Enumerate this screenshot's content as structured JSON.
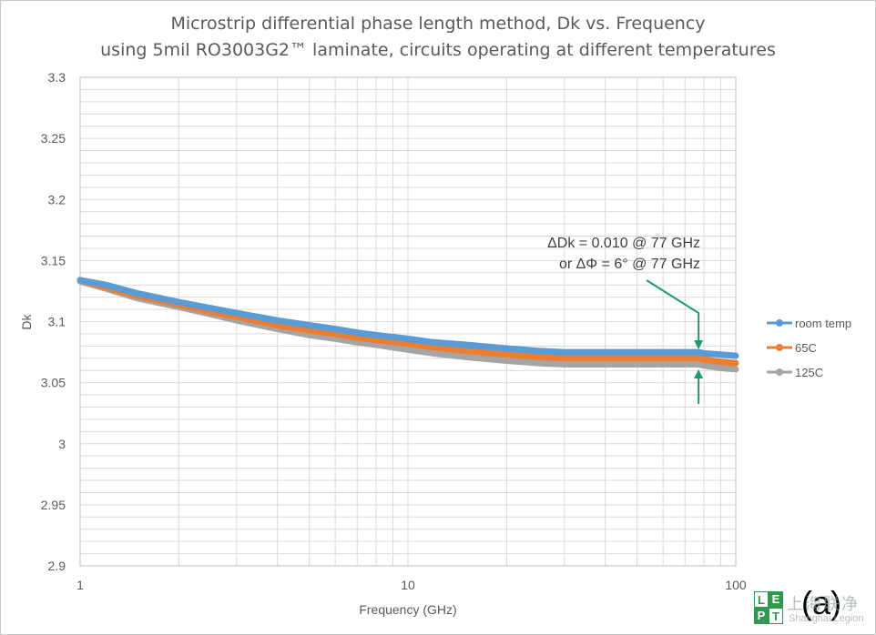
{
  "chart_data": {
    "type": "line",
    "title": [
      "Microstrip differential  phase length method, Dk vs. Frequency",
      "using 5mil RO3003G2™ laminate, circuits operating at different  temperatures"
    ],
    "xlabel": "Frequency (GHz)",
    "ylabel": "Dk",
    "x_scale": "log",
    "xlim": [
      1,
      100
    ],
    "ylim": [
      2.9,
      3.3
    ],
    "x_ticks": [
      "1",
      "10",
      "100"
    ],
    "y_ticks": [
      "3.3",
      "3.25",
      "3.2",
      "3.15",
      "3.1",
      "3.05",
      "3",
      "2.95",
      "2.9"
    ],
    "grid": true,
    "legend": "right",
    "x": [
      1,
      1.2,
      1.5,
      2,
      2.5,
      3,
      4,
      5,
      6,
      7,
      8,
      10,
      12,
      15,
      20,
      25,
      30,
      40,
      50,
      60,
      70,
      77,
      80,
      90,
      100
    ],
    "series": [
      {
        "name": "room temp",
        "color": "#5b9bd5",
        "values": [
          3.134,
          3.13,
          3.123,
          3.116,
          3.111,
          3.107,
          3.101,
          3.097,
          3.094,
          3.091,
          3.089,
          3.086,
          3.083,
          3.081,
          3.078,
          3.076,
          3.075,
          3.075,
          3.075,
          3.075,
          3.075,
          3.075,
          3.074,
          3.073,
          3.072
        ]
      },
      {
        "name": "65C",
        "color": "#ed7d31",
        "values": [
          3.134,
          3.128,
          3.121,
          3.114,
          3.108,
          3.104,
          3.097,
          3.093,
          3.09,
          3.087,
          3.085,
          3.082,
          3.079,
          3.076,
          3.073,
          3.071,
          3.07,
          3.07,
          3.07,
          3.07,
          3.07,
          3.07,
          3.069,
          3.067,
          3.066
        ]
      },
      {
        "name": "125C",
        "color": "#a5a5a5",
        "values": [
          3.133,
          3.127,
          3.119,
          3.112,
          3.106,
          3.101,
          3.094,
          3.089,
          3.086,
          3.083,
          3.081,
          3.077,
          3.074,
          3.071,
          3.068,
          3.066,
          3.065,
          3.065,
          3.065,
          3.065,
          3.065,
          3.065,
          3.064,
          3.062,
          3.061
        ]
      }
    ],
    "annotations": [
      "ΔDk = 0.010 @ 77 GHz",
      "or ΔΦ = 6° @ 77 GHz"
    ],
    "annotation_x": 77,
    "arrow_color": "#1f9a6b"
  },
  "panel_label": "(a)",
  "watermark": {
    "text_cjk": "上海联净",
    "text_sub": "Shanghai Legion",
    "letters": [
      "L",
      "E",
      "P",
      "T"
    ]
  }
}
